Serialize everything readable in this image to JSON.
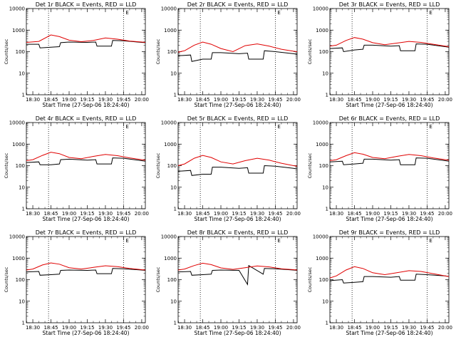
{
  "chart_data": [
    {
      "type": "line",
      "title": "Det 1r BLACK = Events, RED = LLD",
      "xlabel": "Start Time (27-Sep-06 18:24:40)",
      "ylabel": "Counts/sec",
      "yscale": "log",
      "ylim": [
        1,
        10000
      ],
      "x_ticks": [
        "18:30",
        "18:45",
        "19:00",
        "19:15",
        "19:30",
        "19:45",
        "20:00"
      ],
      "y_ticks": [
        "1",
        "10",
        "100",
        "1000",
        "10000"
      ],
      "vlines": [
        "18:43",
        "19:45"
      ],
      "marker_label": "E",
      "series": [
        {
          "color": "#000000",
          "x": [
            "18:24",
            "18:35",
            "18:36",
            "18:45",
            "18:52",
            "18:53",
            "19:00",
            "19:15",
            "19:22",
            "19:23",
            "19:35",
            "19:36",
            "19:45",
            "20:00",
            "20:03"
          ],
          "values": [
            220,
            220,
            150,
            160,
            170,
            260,
            280,
            270,
            280,
            180,
            180,
            330,
            320,
            270,
            260
          ]
        },
        {
          "color": "#e00000",
          "x": [
            "18:24",
            "18:35",
            "18:45",
            "18:52",
            "19:00",
            "19:10",
            "19:20",
            "19:30",
            "19:40",
            "19:50",
            "20:00",
            "20:03"
          ],
          "values": [
            270,
            300,
            600,
            500,
            340,
            290,
            330,
            430,
            380,
            310,
            280,
            270
          ]
        }
      ]
    },
    {
      "type": "line",
      "title": "Det 2r BLACK = Events, RED = LLD",
      "xlabel": "Start Time (27-Sep-06 18:24:40)",
      "ylabel": "Counts/sec",
      "yscale": "log",
      "ylim": [
        1,
        10000
      ],
      "x_ticks": [
        "18:30",
        "18:45",
        "19:00",
        "19:15",
        "19:30",
        "19:45",
        "20:00"
      ],
      "y_ticks": [
        "1",
        "10",
        "100",
        "1000",
        "10000"
      ],
      "vlines": [
        "18:43",
        "19:45"
      ],
      "marker_label": "E",
      "series": [
        {
          "color": "#000000",
          "x": [
            "18:24",
            "18:35",
            "18:36",
            "18:45",
            "18:52",
            "18:53",
            "19:00",
            "19:15",
            "19:22",
            "19:23",
            "19:35",
            "19:36",
            "19:45",
            "20:00",
            "20:03"
          ],
          "values": [
            65,
            70,
            35,
            45,
            45,
            90,
            90,
            80,
            85,
            45,
            45,
            110,
            100,
            80,
            75
          ]
        },
        {
          "color": "#e00000",
          "x": [
            "18:24",
            "18:30",
            "18:38",
            "18:45",
            "18:52",
            "19:00",
            "19:10",
            "19:20",
            "19:30",
            "19:40",
            "19:50",
            "20:00",
            "20:03"
          ],
          "values": [
            95,
            110,
            200,
            280,
            220,
            140,
            100,
            190,
            230,
            180,
            130,
            105,
            100
          ]
        }
      ]
    },
    {
      "type": "line",
      "title": "Det 3r BLACK = Events, RED = LLD",
      "xlabel": "Start Time (27-Sep-06 18:24:40)",
      "ylabel": "Counts/sec",
      "yscale": "log",
      "ylim": [
        1,
        10000
      ],
      "x_ticks": [
        "18:30",
        "18:45",
        "19:00",
        "19:15",
        "19:30",
        "19:45",
        "20:00"
      ],
      "y_ticks": [
        "1",
        "10",
        "100",
        "1000",
        "10000"
      ],
      "vlines": [
        "18:43",
        "19:45"
      ],
      "marker_label": "E",
      "series": [
        {
          "color": "#000000",
          "x": [
            "18:24",
            "18:35",
            "18:36",
            "18:45",
            "18:52",
            "18:53",
            "19:00",
            "19:15",
            "19:22",
            "19:23",
            "19:35",
            "19:36",
            "19:45",
            "20:00",
            "20:03"
          ],
          "values": [
            140,
            150,
            100,
            120,
            130,
            200,
            200,
            180,
            190,
            110,
            110,
            230,
            220,
            170,
            160
          ]
        },
        {
          "color": "#e00000",
          "x": [
            "18:24",
            "18:30",
            "18:38",
            "18:45",
            "18:52",
            "19:00",
            "19:10",
            "19:20",
            "19:30",
            "19:40",
            "19:50",
            "20:00",
            "20:03"
          ],
          "values": [
            180,
            200,
            330,
            450,
            380,
            260,
            210,
            250,
            300,
            270,
            220,
            180,
            170
          ]
        }
      ]
    },
    {
      "type": "line",
      "title": "Det 4r BLACK = Events, RED = LLD",
      "xlabel": "Start Time (27-Sep-06 18:24:40)",
      "ylabel": "Counts/sec",
      "yscale": "log",
      "ylim": [
        1,
        10000
      ],
      "x_ticks": [
        "18:30",
        "18:45",
        "19:00",
        "19:15",
        "19:30",
        "19:45",
        "20:00"
      ],
      "y_ticks": [
        "1",
        "10",
        "100",
        "1000",
        "10000"
      ],
      "vlines": [
        "18:43",
        "19:45"
      ],
      "marker_label": "E",
      "series": [
        {
          "color": "#000000",
          "x": [
            "18:24",
            "18:35",
            "18:36",
            "18:45",
            "18:52",
            "18:53",
            "19:00",
            "19:15",
            "19:22",
            "19:23",
            "19:35",
            "19:36",
            "19:45",
            "20:00",
            "20:03"
          ],
          "values": [
            140,
            150,
            110,
            110,
            120,
            190,
            200,
            180,
            190,
            120,
            120,
            230,
            220,
            170,
            160
          ]
        },
        {
          "color": "#e00000",
          "x": [
            "18:24",
            "18:30",
            "18:38",
            "18:45",
            "18:52",
            "19:00",
            "19:10",
            "19:20",
            "19:30",
            "19:40",
            "19:50",
            "20:00",
            "20:03"
          ],
          "values": [
            170,
            190,
            300,
            420,
            360,
            240,
            210,
            270,
            330,
            290,
            230,
            190,
            180
          ]
        }
      ]
    },
    {
      "type": "line",
      "title": "Det 5r BLACK = Events, RED = LLD",
      "xlabel": "Start Time (27-Sep-06 18:24:40)",
      "ylabel": "Counts/sec",
      "yscale": "log",
      "ylim": [
        1,
        10000
      ],
      "x_ticks": [
        "18:30",
        "18:45",
        "19:00",
        "19:15",
        "19:30",
        "19:45",
        "20:00"
      ],
      "y_ticks": [
        "1",
        "10",
        "100",
        "1000",
        "10000"
      ],
      "vlines": [
        "18:43",
        "19:45"
      ],
      "marker_label": "E",
      "series": [
        {
          "color": "#000000",
          "x": [
            "18:24",
            "18:35",
            "18:36",
            "18:45",
            "18:52",
            "18:53",
            "19:00",
            "19:15",
            "19:22",
            "19:23",
            "19:35",
            "19:36",
            "19:45",
            "20:00",
            "20:03"
          ],
          "values": [
            55,
            60,
            35,
            40,
            40,
            85,
            85,
            75,
            80,
            45,
            45,
            100,
            95,
            75,
            70
          ]
        },
        {
          "color": "#e00000",
          "x": [
            "18:24",
            "18:30",
            "18:38",
            "18:45",
            "18:52",
            "19:00",
            "19:10",
            "19:20",
            "19:30",
            "19:40",
            "19:50",
            "20:00",
            "20:03"
          ],
          "values": [
            100,
            120,
            220,
            300,
            240,
            150,
            120,
            170,
            220,
            180,
            130,
            100,
            95
          ]
        }
      ]
    },
    {
      "type": "line",
      "title": "Det 6r BLACK = Events, RED = LLD",
      "xlabel": "Start Time (27-Sep-06 18:24:40)",
      "ylabel": "Counts/sec",
      "yscale": "log",
      "ylim": [
        1,
        10000
      ],
      "x_ticks": [
        "18:30",
        "18:45",
        "19:00",
        "19:15",
        "19:30",
        "19:45",
        "20:00"
      ],
      "y_ticks": [
        "1",
        "10",
        "100",
        "1000",
        "10000"
      ],
      "vlines": [
        "18:43",
        "19:45"
      ],
      "marker_label": "E",
      "series": [
        {
          "color": "#000000",
          "x": [
            "18:24",
            "18:35",
            "18:36",
            "18:45",
            "18:52",
            "18:53",
            "19:00",
            "19:15",
            "19:22",
            "19:23",
            "19:35",
            "19:36",
            "19:45",
            "20:00",
            "20:03"
          ],
          "values": [
            150,
            160,
            110,
            120,
            130,
            200,
            200,
            180,
            190,
            110,
            110,
            230,
            220,
            170,
            160
          ]
        },
        {
          "color": "#e00000",
          "x": [
            "18:24",
            "18:30",
            "18:38",
            "18:45",
            "18:52",
            "19:00",
            "19:10",
            "19:20",
            "19:30",
            "19:40",
            "19:50",
            "20:00",
            "20:03"
          ],
          "values": [
            170,
            190,
            290,
            400,
            340,
            240,
            210,
            270,
            330,
            290,
            230,
            190,
            180
          ]
        }
      ]
    },
    {
      "type": "line",
      "title": "Det 7r BLACK = Events, RED = LLD",
      "xlabel": "Start Time (27-Sep-06 18:24:40)",
      "ylabel": "Counts/sec",
      "yscale": "log",
      "ylim": [
        1,
        10000
      ],
      "x_ticks": [
        "18:30",
        "18:45",
        "19:00",
        "19:15",
        "19:30",
        "19:45",
        "20:00"
      ],
      "y_ticks": [
        "1",
        "10",
        "100",
        "1000",
        "10000"
      ],
      "vlines": [
        "18:43",
        "19:45"
      ],
      "marker_label": "E",
      "series": [
        {
          "color": "#000000",
          "x": [
            "18:24",
            "18:35",
            "18:36",
            "18:45",
            "18:52",
            "18:53",
            "19:00",
            "19:15",
            "19:22",
            "19:23",
            "19:35",
            "19:36",
            "19:45",
            "20:00",
            "20:03"
          ],
          "values": [
            230,
            240,
            160,
            170,
            180,
            270,
            280,
            270,
            280,
            190,
            190,
            330,
            320,
            280,
            270
          ]
        },
        {
          "color": "#e00000",
          "x": [
            "18:24",
            "18:30",
            "18:38",
            "18:45",
            "18:52",
            "19:00",
            "19:10",
            "19:20",
            "19:30",
            "19:40",
            "19:50",
            "20:00",
            "20:03"
          ],
          "values": [
            280,
            310,
            480,
            600,
            520,
            360,
            310,
            370,
            440,
            400,
            330,
            290,
            280
          ]
        }
      ]
    },
    {
      "type": "line",
      "title": "Det 8r BLACK = Events, RED = LLD",
      "xlabel": "Start Time (27-Sep-06 18:24:40)",
      "ylabel": "Counts/sec",
      "yscale": "log",
      "ylim": [
        1,
        10000
      ],
      "x_ticks": [
        "18:30",
        "18:45",
        "19:00",
        "19:15",
        "19:30",
        "19:45",
        "20:00"
      ],
      "y_ticks": [
        "1",
        "10",
        "100",
        "1000",
        "10000"
      ],
      "vlines": [
        "18:43",
        "19:45"
      ],
      "marker_label": "E",
      "series": [
        {
          "color": "#000000",
          "x": [
            "18:24",
            "18:35",
            "18:36",
            "18:45",
            "18:52",
            "18:53",
            "19:00",
            "19:15",
            "19:22",
            "19:23",
            "19:35",
            "19:36",
            "19:45",
            "20:00",
            "20:03"
          ],
          "values": [
            230,
            240,
            160,
            170,
            180,
            270,
            280,
            270,
            60,
            450,
            180,
            330,
            320,
            280,
            270
          ]
        },
        {
          "color": "#e00000",
          "x": [
            "18:24",
            "18:30",
            "18:38",
            "18:45",
            "18:52",
            "19:00",
            "19:10",
            "19:20",
            "19:30",
            "19:40",
            "19:50",
            "20:00",
            "20:03"
          ],
          "values": [
            280,
            310,
            450,
            580,
            500,
            350,
            300,
            360,
            430,
            390,
            320,
            290,
            280
          ]
        }
      ]
    },
    {
      "type": "line",
      "title": "Det 9r BLACK = Events, RED = LLD",
      "xlabel": "Start Time (27-Sep-06 18:24:40)",
      "ylabel": "Counts/sec",
      "yscale": "log",
      "ylim": [
        1,
        10000
      ],
      "x_ticks": [
        "18:30",
        "18:45",
        "19:00",
        "19:15",
        "19:30",
        "19:45",
        "20:00"
      ],
      "y_ticks": [
        "1",
        "10",
        "100",
        "1000",
        "10000"
      ],
      "vlines": [
        "18:43",
        "19:45"
      ],
      "marker_label": "E",
      "series": [
        {
          "color": "#000000",
          "x": [
            "18:24",
            "18:35",
            "18:36",
            "18:45",
            "18:52",
            "18:53",
            "19:00",
            "19:15",
            "19:22",
            "19:23",
            "19:35",
            "19:36",
            "19:45",
            "20:00",
            "20:03"
          ],
          "values": [
            90,
            100,
            70,
            75,
            80,
            140,
            140,
            130,
            140,
            95,
            95,
            180,
            170,
            150,
            140
          ]
        },
        {
          "color": "#e00000",
          "x": [
            "18:24",
            "18:30",
            "18:38",
            "18:45",
            "18:52",
            "19:00",
            "19:10",
            "19:20",
            "19:30",
            "19:40",
            "19:50",
            "20:00",
            "20:03"
          ],
          "values": [
            120,
            150,
            280,
            400,
            330,
            210,
            170,
            210,
            260,
            240,
            190,
            150,
            140
          ]
        }
      ]
    }
  ]
}
